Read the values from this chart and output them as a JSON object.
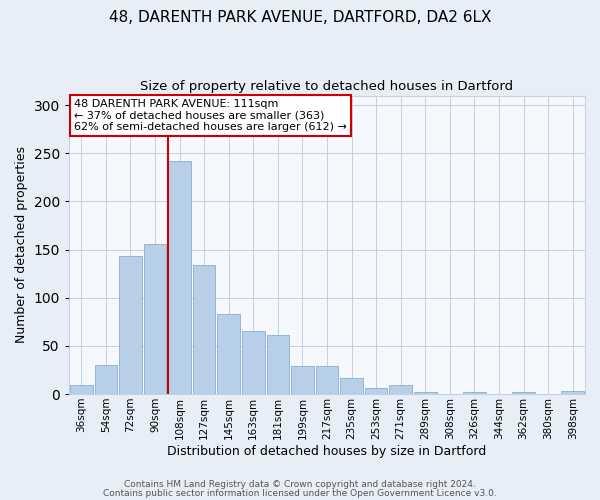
{
  "title1": "48, DARENTH PARK AVENUE, DARTFORD, DA2 6LX",
  "title2": "Size of property relative to detached houses in Dartford",
  "xlabel": "Distribution of detached houses by size in Dartford",
  "ylabel": "Number of detached properties",
  "bar_labels": [
    "36sqm",
    "54sqm",
    "72sqm",
    "90sqm",
    "108sqm",
    "127sqm",
    "145sqm",
    "163sqm",
    "181sqm",
    "199sqm",
    "217sqm",
    "235sqm",
    "253sqm",
    "271sqm",
    "289sqm",
    "308sqm",
    "326sqm",
    "344sqm",
    "362sqm",
    "380sqm",
    "398sqm"
  ],
  "bar_values": [
    9,
    30,
    143,
    156,
    242,
    134,
    83,
    65,
    61,
    29,
    29,
    17,
    6,
    9,
    2,
    0,
    2,
    0,
    2,
    0,
    3
  ],
  "bar_color": "#b8cfe8",
  "bar_edge_color": "#8aadd4",
  "vline_color": "#cc0000",
  "annotation_lines": [
    "48 DARENTH PARK AVENUE: 111sqm",
    "← 37% of detached houses are smaller (363)",
    "62% of semi-detached houses are larger (612) →"
  ],
  "annotation_box_color": "#ffffff",
  "annotation_box_edge_color": "#cc0000",
  "ylim": [
    0,
    310
  ],
  "yticks": [
    0,
    50,
    100,
    150,
    200,
    250,
    300
  ],
  "footer1": "Contains HM Land Registry data © Crown copyright and database right 2024.",
  "footer2": "Contains public sector information licensed under the Open Government Licence v3.0.",
  "background_color": "#e8eef8",
  "plot_bg_color": "#f5f8fd",
  "grid_color": "#c5d0e0",
  "title1_fontsize": 11,
  "title2_fontsize": 9.5,
  "axis_label_fontsize": 9,
  "tick_fontsize": 7.5,
  "footer_fontsize": 6.5,
  "annotation_fontsize": 8
}
